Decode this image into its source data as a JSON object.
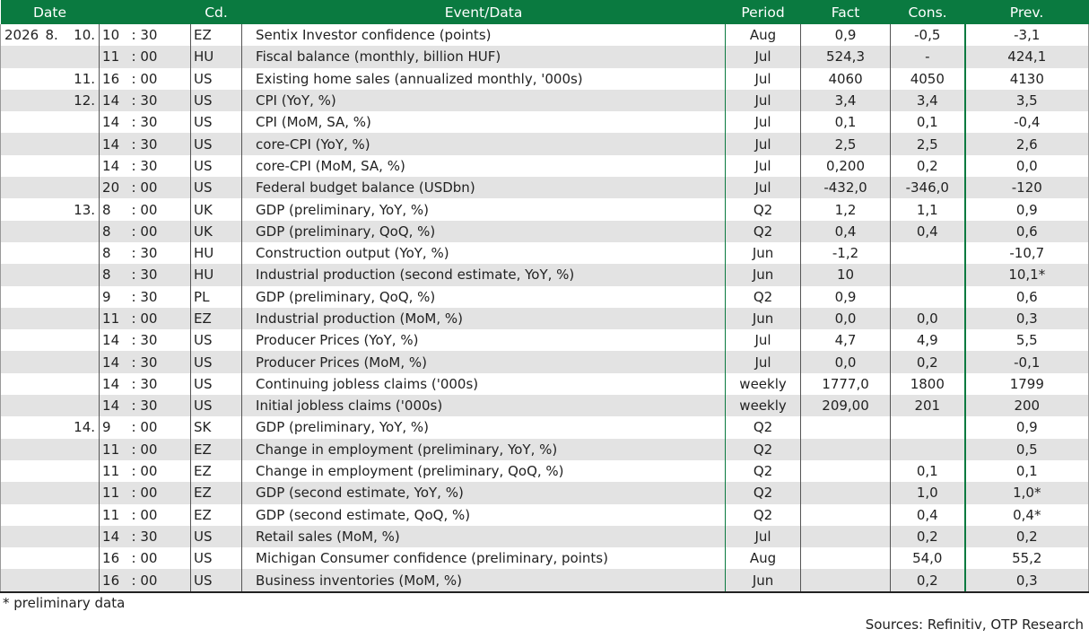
{
  "header": {
    "date": "Date",
    "cd": "Cd.",
    "event": "Event/Data",
    "period": "Period",
    "fact": "Fact",
    "cons": "Cons.",
    "prev": "Prev."
  },
  "rows": [
    {
      "year": "2026",
      "month": "8.",
      "day": "10.",
      "hh": "10",
      "mm": ": 30",
      "cd": "EZ",
      "event": "Sentix Investor confidence (points)",
      "period": "Aug",
      "fact": "0,9",
      "cons": "-0,5",
      "prev": "-3,1"
    },
    {
      "year": "",
      "month": "",
      "day": "",
      "hh": "11",
      "mm": ": 00",
      "cd": "HU",
      "event": "Fiscal balance (monthly, billion HUF)",
      "period": "Jul",
      "fact": "524,3",
      "cons": "-",
      "prev": "424,1"
    },
    {
      "year": "",
      "month": "",
      "day": "11.",
      "hh": "16",
      "mm": ": 00",
      "cd": "US",
      "event": "Existing home sales (annualized monthly, '000s)",
      "period": "Jul",
      "fact": "4060",
      "cons": "4050",
      "prev": "4130"
    },
    {
      "year": "",
      "month": "",
      "day": "12.",
      "hh": "14",
      "mm": ": 30",
      "cd": "US",
      "event": "CPI (YoY, %)",
      "period": "Jul",
      "fact": "3,4",
      "cons": "3,4",
      "prev": "3,5"
    },
    {
      "year": "",
      "month": "",
      "day": "",
      "hh": "14",
      "mm": ": 30",
      "cd": "US",
      "event": "CPI (MoM, SA, %)",
      "period": "Jul",
      "fact": "0,1",
      "cons": "0,1",
      "prev": "-0,4"
    },
    {
      "year": "",
      "month": "",
      "day": "",
      "hh": "14",
      "mm": ": 30",
      "cd": "US",
      "event": "core-CPI (YoY, %)",
      "period": "Jul",
      "fact": "2,5",
      "cons": "2,5",
      "prev": "2,6"
    },
    {
      "year": "",
      "month": "",
      "day": "",
      "hh": "14",
      "mm": ": 30",
      "cd": "US",
      "event": "core-CPI (MoM, SA, %)",
      "period": "Jul",
      "fact": "0,200",
      "cons": "0,2",
      "prev": "0,0"
    },
    {
      "year": "",
      "month": "",
      "day": "",
      "hh": "20",
      "mm": ": 00",
      "cd": "US",
      "event": "Federal budget balance (USDbn)",
      "period": "Jul",
      "fact": "-432,0",
      "cons": "-346,0",
      "prev": "-120"
    },
    {
      "year": "",
      "month": "",
      "day": "13.",
      "hh": "8",
      "mm": ": 00",
      "cd": "UK",
      "event": "GDP (preliminary, YoY, %)",
      "period": "Q2",
      "fact": "1,2",
      "cons": "1,1",
      "prev": "0,9"
    },
    {
      "year": "",
      "month": "",
      "day": "",
      "hh": "8",
      "mm": ": 00",
      "cd": "UK",
      "event": "GDP (preliminary, QoQ, %)",
      "period": "Q2",
      "fact": "0,4",
      "cons": "0,4",
      "prev": "0,6"
    },
    {
      "year": "",
      "month": "",
      "day": "",
      "hh": "8",
      "mm": ": 30",
      "cd": "HU",
      "event": "Construction output (YoY, %)",
      "period": "Jun",
      "fact": "-1,2",
      "cons": "",
      "prev": "-10,7"
    },
    {
      "year": "",
      "month": "",
      "day": "",
      "hh": "8",
      "mm": ": 30",
      "cd": "HU",
      "event": "Industrial production (second estimate, YoY, %)",
      "period": "Jun",
      "fact": "10",
      "cons": "",
      "prev": "10,1*"
    },
    {
      "year": "",
      "month": "",
      "day": "",
      "hh": "9",
      "mm": ": 30",
      "cd": "PL",
      "event": "GDP (preliminary, QoQ, %)",
      "period": "Q2",
      "fact": "0,9",
      "cons": "",
      "prev": "0,6"
    },
    {
      "year": "",
      "month": "",
      "day": "",
      "hh": "11",
      "mm": ": 00",
      "cd": "EZ",
      "event": "Industrial production (MoM, %)",
      "period": "Jun",
      "fact": "0,0",
      "cons": "0,0",
      "prev": "0,3"
    },
    {
      "year": "",
      "month": "",
      "day": "",
      "hh": "14",
      "mm": ": 30",
      "cd": "US",
      "event": "Producer Prices (YoY, %)",
      "period": "Jul",
      "fact": "4,7",
      "cons": "4,9",
      "prev": "5,5"
    },
    {
      "year": "",
      "month": "",
      "day": "",
      "hh": "14",
      "mm": ": 30",
      "cd": "US",
      "event": "Producer Prices (MoM, %)",
      "period": "Jul",
      "fact": "0,0",
      "cons": "0,2",
      "prev": "-0,1"
    },
    {
      "year": "",
      "month": "",
      "day": "",
      "hh": "14",
      "mm": ": 30",
      "cd": "US",
      "event": "Continuing jobless claims ('000s)",
      "period": "weekly",
      "fact": "1777,0",
      "cons": "1800",
      "prev": "1799"
    },
    {
      "year": "",
      "month": "",
      "day": "",
      "hh": "14",
      "mm": ": 30",
      "cd": "US",
      "event": "Initial jobless claims ('000s)",
      "period": "weekly",
      "fact": "209,00",
      "cons": "201",
      "prev": "200"
    },
    {
      "year": "",
      "month": "",
      "day": "14.",
      "hh": "9",
      "mm": ": 00",
      "cd": "SK",
      "event": "GDP (preliminary, YoY, %)",
      "period": "Q2",
      "fact": "",
      "cons": "",
      "prev": "0,9"
    },
    {
      "year": "",
      "month": "",
      "day": "",
      "hh": "11",
      "mm": ": 00",
      "cd": "EZ",
      "event": "Change in employment (preliminary, YoY, %)",
      "period": "Q2",
      "fact": "",
      "cons": "",
      "prev": "0,5"
    },
    {
      "year": "",
      "month": "",
      "day": "",
      "hh": "11",
      "mm": ": 00",
      "cd": "EZ",
      "event": "Change in employment (preliminary, QoQ, %)",
      "period": "Q2",
      "fact": "",
      "cons": "0,1",
      "prev": "0,1"
    },
    {
      "year": "",
      "month": "",
      "day": "",
      "hh": "11",
      "mm": ": 00",
      "cd": "EZ",
      "event": "GDP (second estimate, YoY, %)",
      "period": "Q2",
      "fact": "",
      "cons": "1,0",
      "prev": "1,0*"
    },
    {
      "year": "",
      "month": "",
      "day": "",
      "hh": "11",
      "mm": ": 00",
      "cd": "EZ",
      "event": "GDP (second estimate, QoQ, %)",
      "period": "Q2",
      "fact": "",
      "cons": "0,4",
      "prev": "0,4*"
    },
    {
      "year": "",
      "month": "",
      "day": "",
      "hh": "14",
      "mm": ": 30",
      "cd": "US",
      "event": "Retail sales (MoM, %)",
      "period": "Jul",
      "fact": "",
      "cons": "0,2",
      "prev": "0,2"
    },
    {
      "year": "",
      "month": "",
      "day": "",
      "hh": "16",
      "mm": ": 00",
      "cd": "US",
      "event": "Michigan Consumer confidence (preliminary, points)",
      "period": "Aug",
      "fact": "",
      "cons": "54,0",
      "prev": "55,2"
    },
    {
      "year": "",
      "month": "",
      "day": "",
      "hh": "16",
      "mm": ": 00",
      "cd": "US",
      "event": "Business inventories (MoM, %)",
      "period": "Jun",
      "fact": "",
      "cons": "0,2",
      "prev": "0,3"
    }
  ],
  "footnote": "* preliminary data",
  "sources": "Sources: Refinitiv, OTP Research",
  "colors": {
    "header_bg": "#0a7a40",
    "row_alt": "#e3e3e3"
  }
}
